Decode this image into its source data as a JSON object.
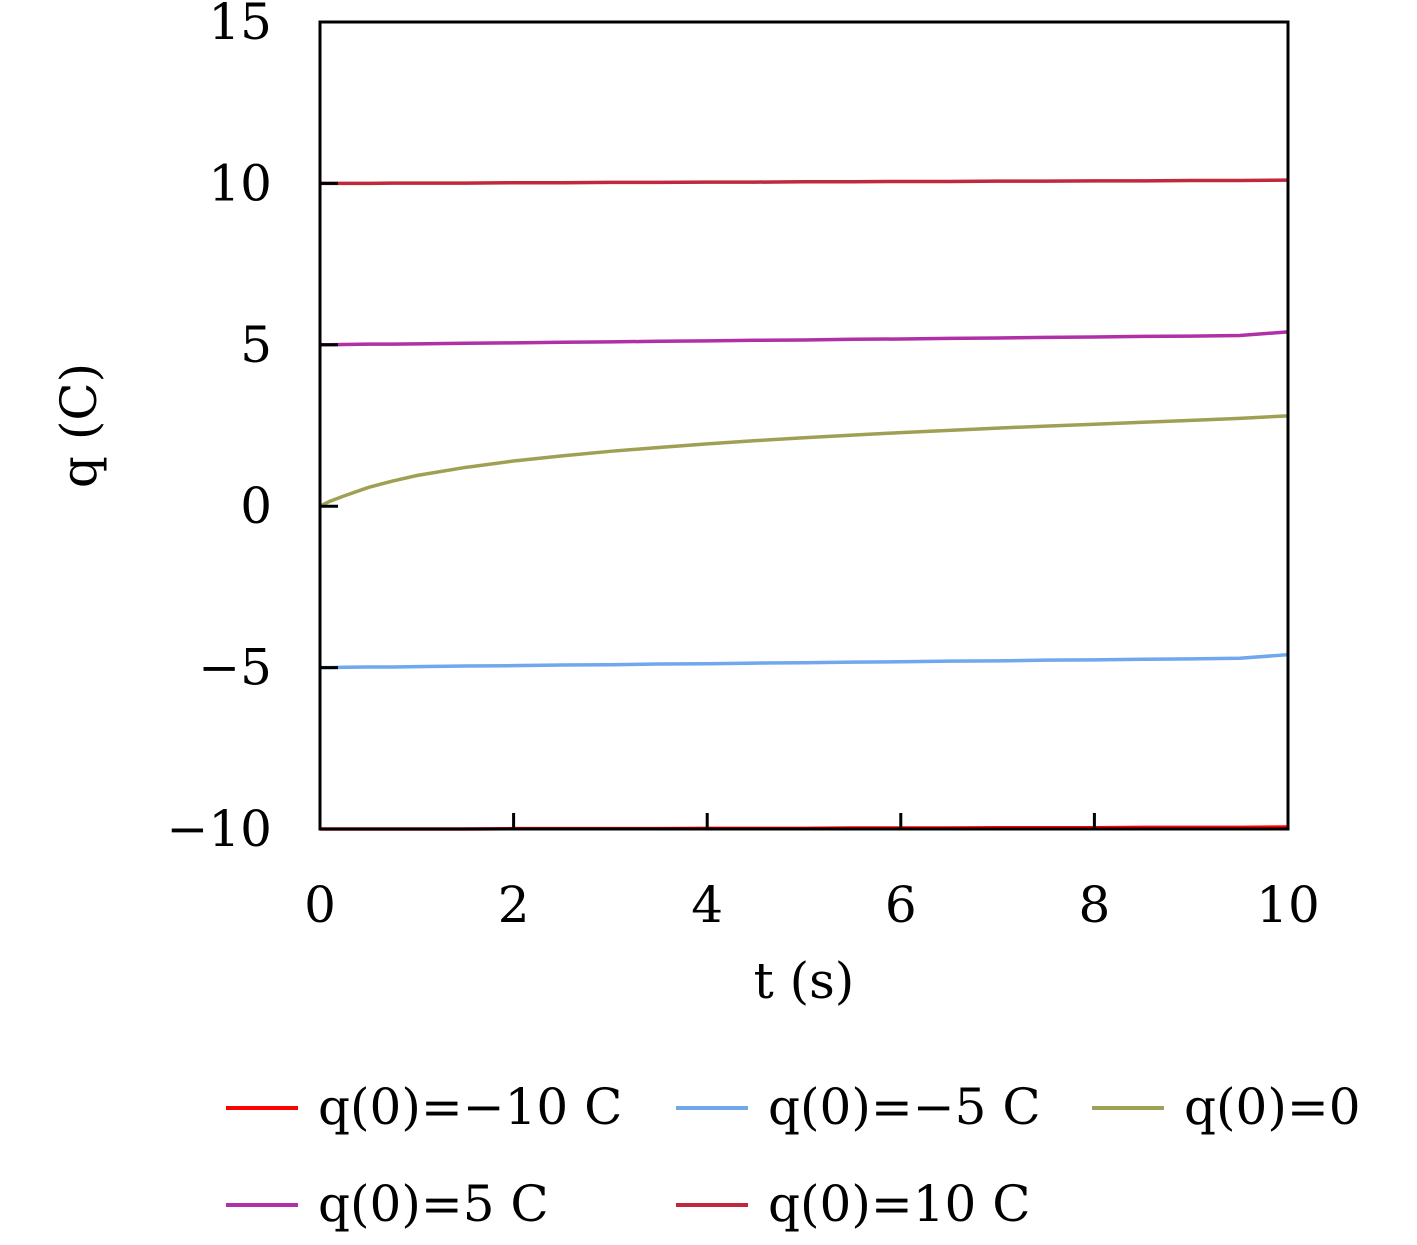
{
  "chart_data": {
    "type": "line",
    "title": "",
    "xlabel": "t (s)",
    "ylabel": "q (C)",
    "xlim": [
      0,
      10
    ],
    "ylim": [
      -10,
      15
    ],
    "xticks": [
      0,
      2,
      4,
      6,
      8,
      10
    ],
    "yticks": [
      -10,
      -5,
      0,
      5,
      10,
      15
    ],
    "xtick_labels": [
      "0",
      "2",
      "4",
      "6",
      "8",
      "10"
    ],
    "ytick_labels": [
      "−10",
      "−5",
      "0",
      "5",
      "10",
      "15"
    ],
    "grid": false,
    "legend_position": "bottom",
    "x": [
      0,
      0.1,
      0.25,
      0.5,
      0.75,
      1,
      1.5,
      2,
      2.5,
      3,
      3.5,
      4,
      4.5,
      5,
      5.5,
      6,
      6.5,
      7,
      7.5,
      8,
      8.5,
      9,
      9.5,
      10
    ],
    "series": [
      {
        "name": "q(0)=−10 C",
        "color": "#ff0000",
        "values": [
          -10.0,
          -10.0,
          -10.0,
          -10.0,
          -10.0,
          -10.0,
          -10.0,
          -9.99,
          -9.99,
          -9.99,
          -9.99,
          -9.98,
          -9.98,
          -9.98,
          -9.97,
          -9.97,
          -9.97,
          -9.96,
          -9.96,
          -9.96,
          -9.95,
          -9.95,
          -9.95,
          -9.94
        ]
      },
      {
        "name": "q(0)=−5 C",
        "color": "#6fa8ec",
        "values": [
          -5.0,
          -5.0,
          -4.99,
          -4.98,
          -4.98,
          -4.97,
          -4.95,
          -4.94,
          -4.92,
          -4.91,
          -4.89,
          -4.88,
          -4.86,
          -4.85,
          -4.83,
          -4.82,
          -4.8,
          -4.79,
          -4.77,
          -4.76,
          -4.74,
          -4.73,
          -4.71,
          -4.6
        ]
      },
      {
        "name": "q(0)=0",
        "color": "#a0a055",
        "values": [
          0.0,
          0.15,
          0.32,
          0.58,
          0.78,
          0.95,
          1.2,
          1.4,
          1.56,
          1.7,
          1.82,
          1.93,
          2.03,
          2.12,
          2.2,
          2.28,
          2.35,
          2.42,
          2.48,
          2.54,
          2.6,
          2.66,
          2.72,
          2.8
        ]
      },
      {
        "name": "q(0)=5 C",
        "color": "#b030a8",
        "values": [
          5.0,
          5.0,
          5.01,
          5.02,
          5.02,
          5.03,
          5.05,
          5.06,
          5.08,
          5.09,
          5.11,
          5.12,
          5.14,
          5.15,
          5.17,
          5.18,
          5.2,
          5.21,
          5.23,
          5.24,
          5.26,
          5.27,
          5.29,
          5.4
        ]
      },
      {
        "name": "q(0)=10 C",
        "color": "#c0283c",
        "values": [
          10.0,
          10.0,
          10.0,
          10.0,
          10.01,
          10.01,
          10.01,
          10.02,
          10.02,
          10.03,
          10.03,
          10.04,
          10.04,
          10.05,
          10.05,
          10.06,
          10.06,
          10.07,
          10.07,
          10.08,
          10.08,
          10.09,
          10.09,
          10.1
        ]
      }
    ]
  }
}
